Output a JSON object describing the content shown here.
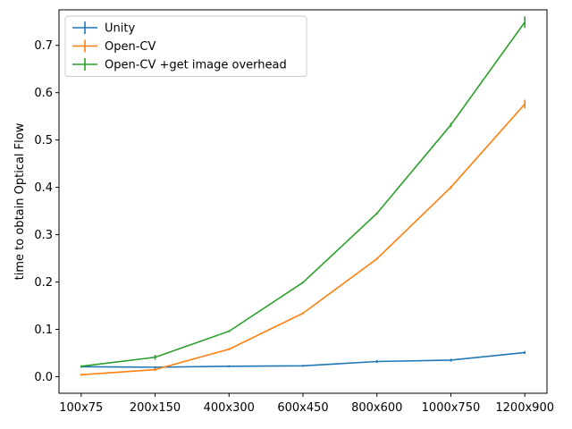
{
  "chart_data": {
    "type": "line",
    "title": "",
    "xlabel": "",
    "ylabel": "time to obtain Optical Flow",
    "categories": [
      "100x75",
      "200x150",
      "400x300",
      "600x450",
      "800x600",
      "1000x750",
      "1200x900"
    ],
    "ylim": [
      -0.035,
      0.775
    ],
    "yticks": [
      0.0,
      0.1,
      0.2,
      0.3,
      0.4,
      0.5,
      0.6,
      0.7
    ],
    "grid": false,
    "legend_position": "top-left",
    "series": [
      {
        "name": "Unity",
        "color": "#1f77b4",
        "values": [
          0.021,
          0.02,
          0.022,
          0.023,
          0.032,
          0.035,
          0.051
        ],
        "errors": [
          0.001,
          0.001,
          0.001,
          0.001,
          0.002,
          0.002,
          0.002
        ]
      },
      {
        "name": "Open-CV",
        "color": "#ff7f0e",
        "values": [
          0.004,
          0.015,
          0.058,
          0.134,
          0.249,
          0.4,
          0.576
        ],
        "errors": [
          0.001,
          0.002,
          0.001,
          0.001,
          0.001,
          0.002,
          0.008
        ]
      },
      {
        "name": "Open-CV +get image overhead",
        "color": "#2ca02c",
        "values": [
          0.022,
          0.041,
          0.096,
          0.199,
          0.345,
          0.532,
          0.749
        ],
        "errors": [
          0.001,
          0.004,
          0.001,
          0.001,
          0.001,
          0.003,
          0.011
        ]
      }
    ]
  }
}
